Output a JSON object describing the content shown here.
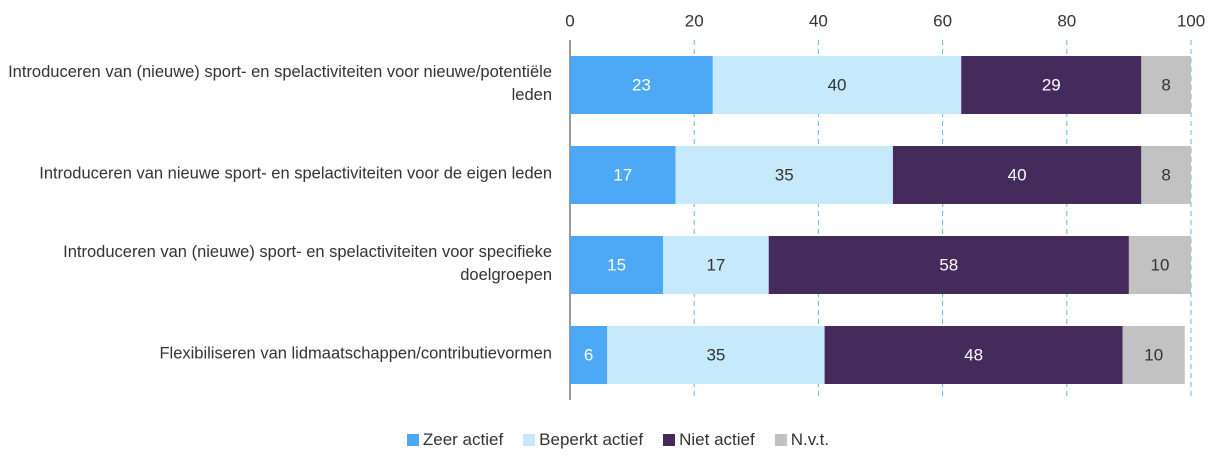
{
  "chart_data": {
    "type": "stacked_barh",
    "categories": [
      "Introduceren van (nieuwe) sport- en spelactiviteiten voor nieuwe/potentiële leden",
      "Introduceren van nieuwe sport- en spelactiviteiten voor de eigen leden",
      "Introduceren van (nieuwe) sport- en spelactiviteiten voor specifieke doelgroepen",
      "Flexibiliseren van lidmaatschappen/contributievormen"
    ],
    "series": [
      {
        "name": "Zeer actief",
        "color": "#4da9f5",
        "values": [
          23,
          17,
          15,
          6
        ]
      },
      {
        "name": "Beperkt actief",
        "color": "#c6e9fb",
        "values": [
          40,
          35,
          17,
          35
        ]
      },
      {
        "name": "Niet actief",
        "color": "#452a5c",
        "values": [
          29,
          40,
          58,
          48
        ]
      },
      {
        "name": "N.v.t.",
        "color": "#c2c2c2",
        "values": [
          8,
          8,
          10,
          10
        ]
      }
    ],
    "xlim": [
      0,
      100
    ],
    "xticks": [
      0,
      20,
      40,
      60,
      80,
      100
    ],
    "grid": true,
    "legend": "bottom"
  }
}
